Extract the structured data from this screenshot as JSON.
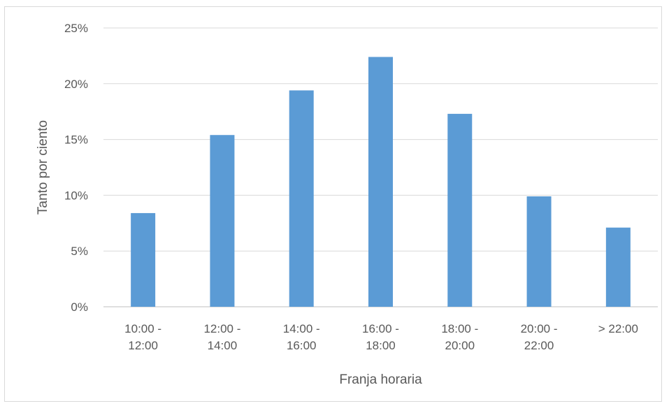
{
  "chart_data": {
    "type": "bar",
    "title": "",
    "xlabel": "Franja horaria",
    "ylabel": "Tanto por ciento",
    "categories": [
      [
        "10:00 -",
        "12:00"
      ],
      [
        "12:00 -",
        "14:00"
      ],
      [
        "14:00 -",
        "16:00"
      ],
      [
        "16:00 -",
        "18:00"
      ],
      [
        "18:00 -",
        "20:00"
      ],
      [
        "20:00 -",
        "22:00"
      ],
      [
        "> 22:00"
      ]
    ],
    "values": [
      8.4,
      15.4,
      19.4,
      22.4,
      17.3,
      9.9,
      7.1
    ],
    "ylim": [
      0,
      25
    ],
    "yticks": [
      0,
      5,
      10,
      15,
      20,
      25
    ],
    "ytick_labels": [
      "0%",
      "5%",
      "10%",
      "15%",
      "20%",
      "25%"
    ],
    "grid": true,
    "legend": "none",
    "bar_color": "#5b9bd5"
  }
}
